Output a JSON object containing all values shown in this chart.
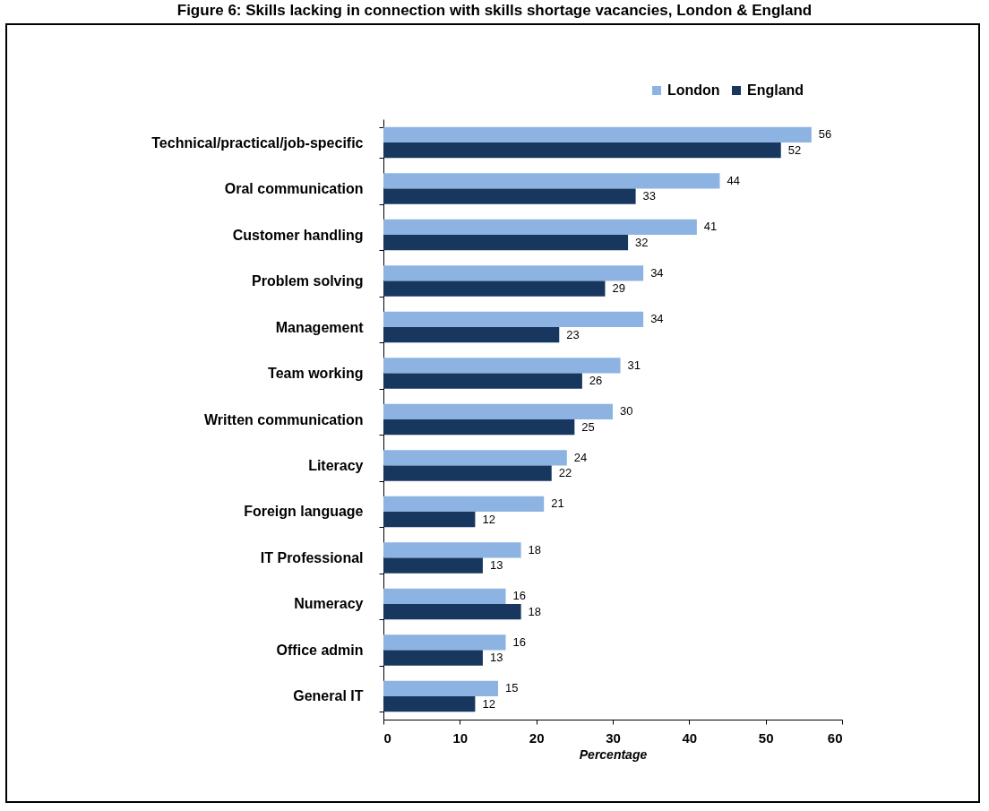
{
  "chart_data": {
    "type": "bar",
    "orientation": "horizontal",
    "title": "Figure 6: Skills lacking in connection with skills shortage vacancies, London & England",
    "xlabel": "Percentage",
    "categories": [
      "Technical/practical/job-specific",
      "Oral communication",
      "Customer handling",
      "Problem solving",
      "Management",
      "Team working",
      "Written communication",
      "Literacy",
      "Foreign language",
      "IT Professional",
      "Numeracy",
      "Office admin",
      "General IT"
    ],
    "series": [
      {
        "name": "London",
        "color": "#8db3e2",
        "values": [
          56,
          44,
          41,
          34,
          34,
          31,
          30,
          24,
          21,
          18,
          16,
          16,
          15
        ]
      },
      {
        "name": "England",
        "color": "#17375e",
        "values": [
          52,
          33,
          32,
          29,
          23,
          26,
          25,
          22,
          12,
          13,
          18,
          13,
          12
        ]
      }
    ],
    "xlim": [
      0,
      60
    ],
    "xticks": [
      0,
      10,
      20,
      30,
      40,
      50,
      60
    ],
    "data_labels": true,
    "legend": "top right",
    "grid": false
  }
}
